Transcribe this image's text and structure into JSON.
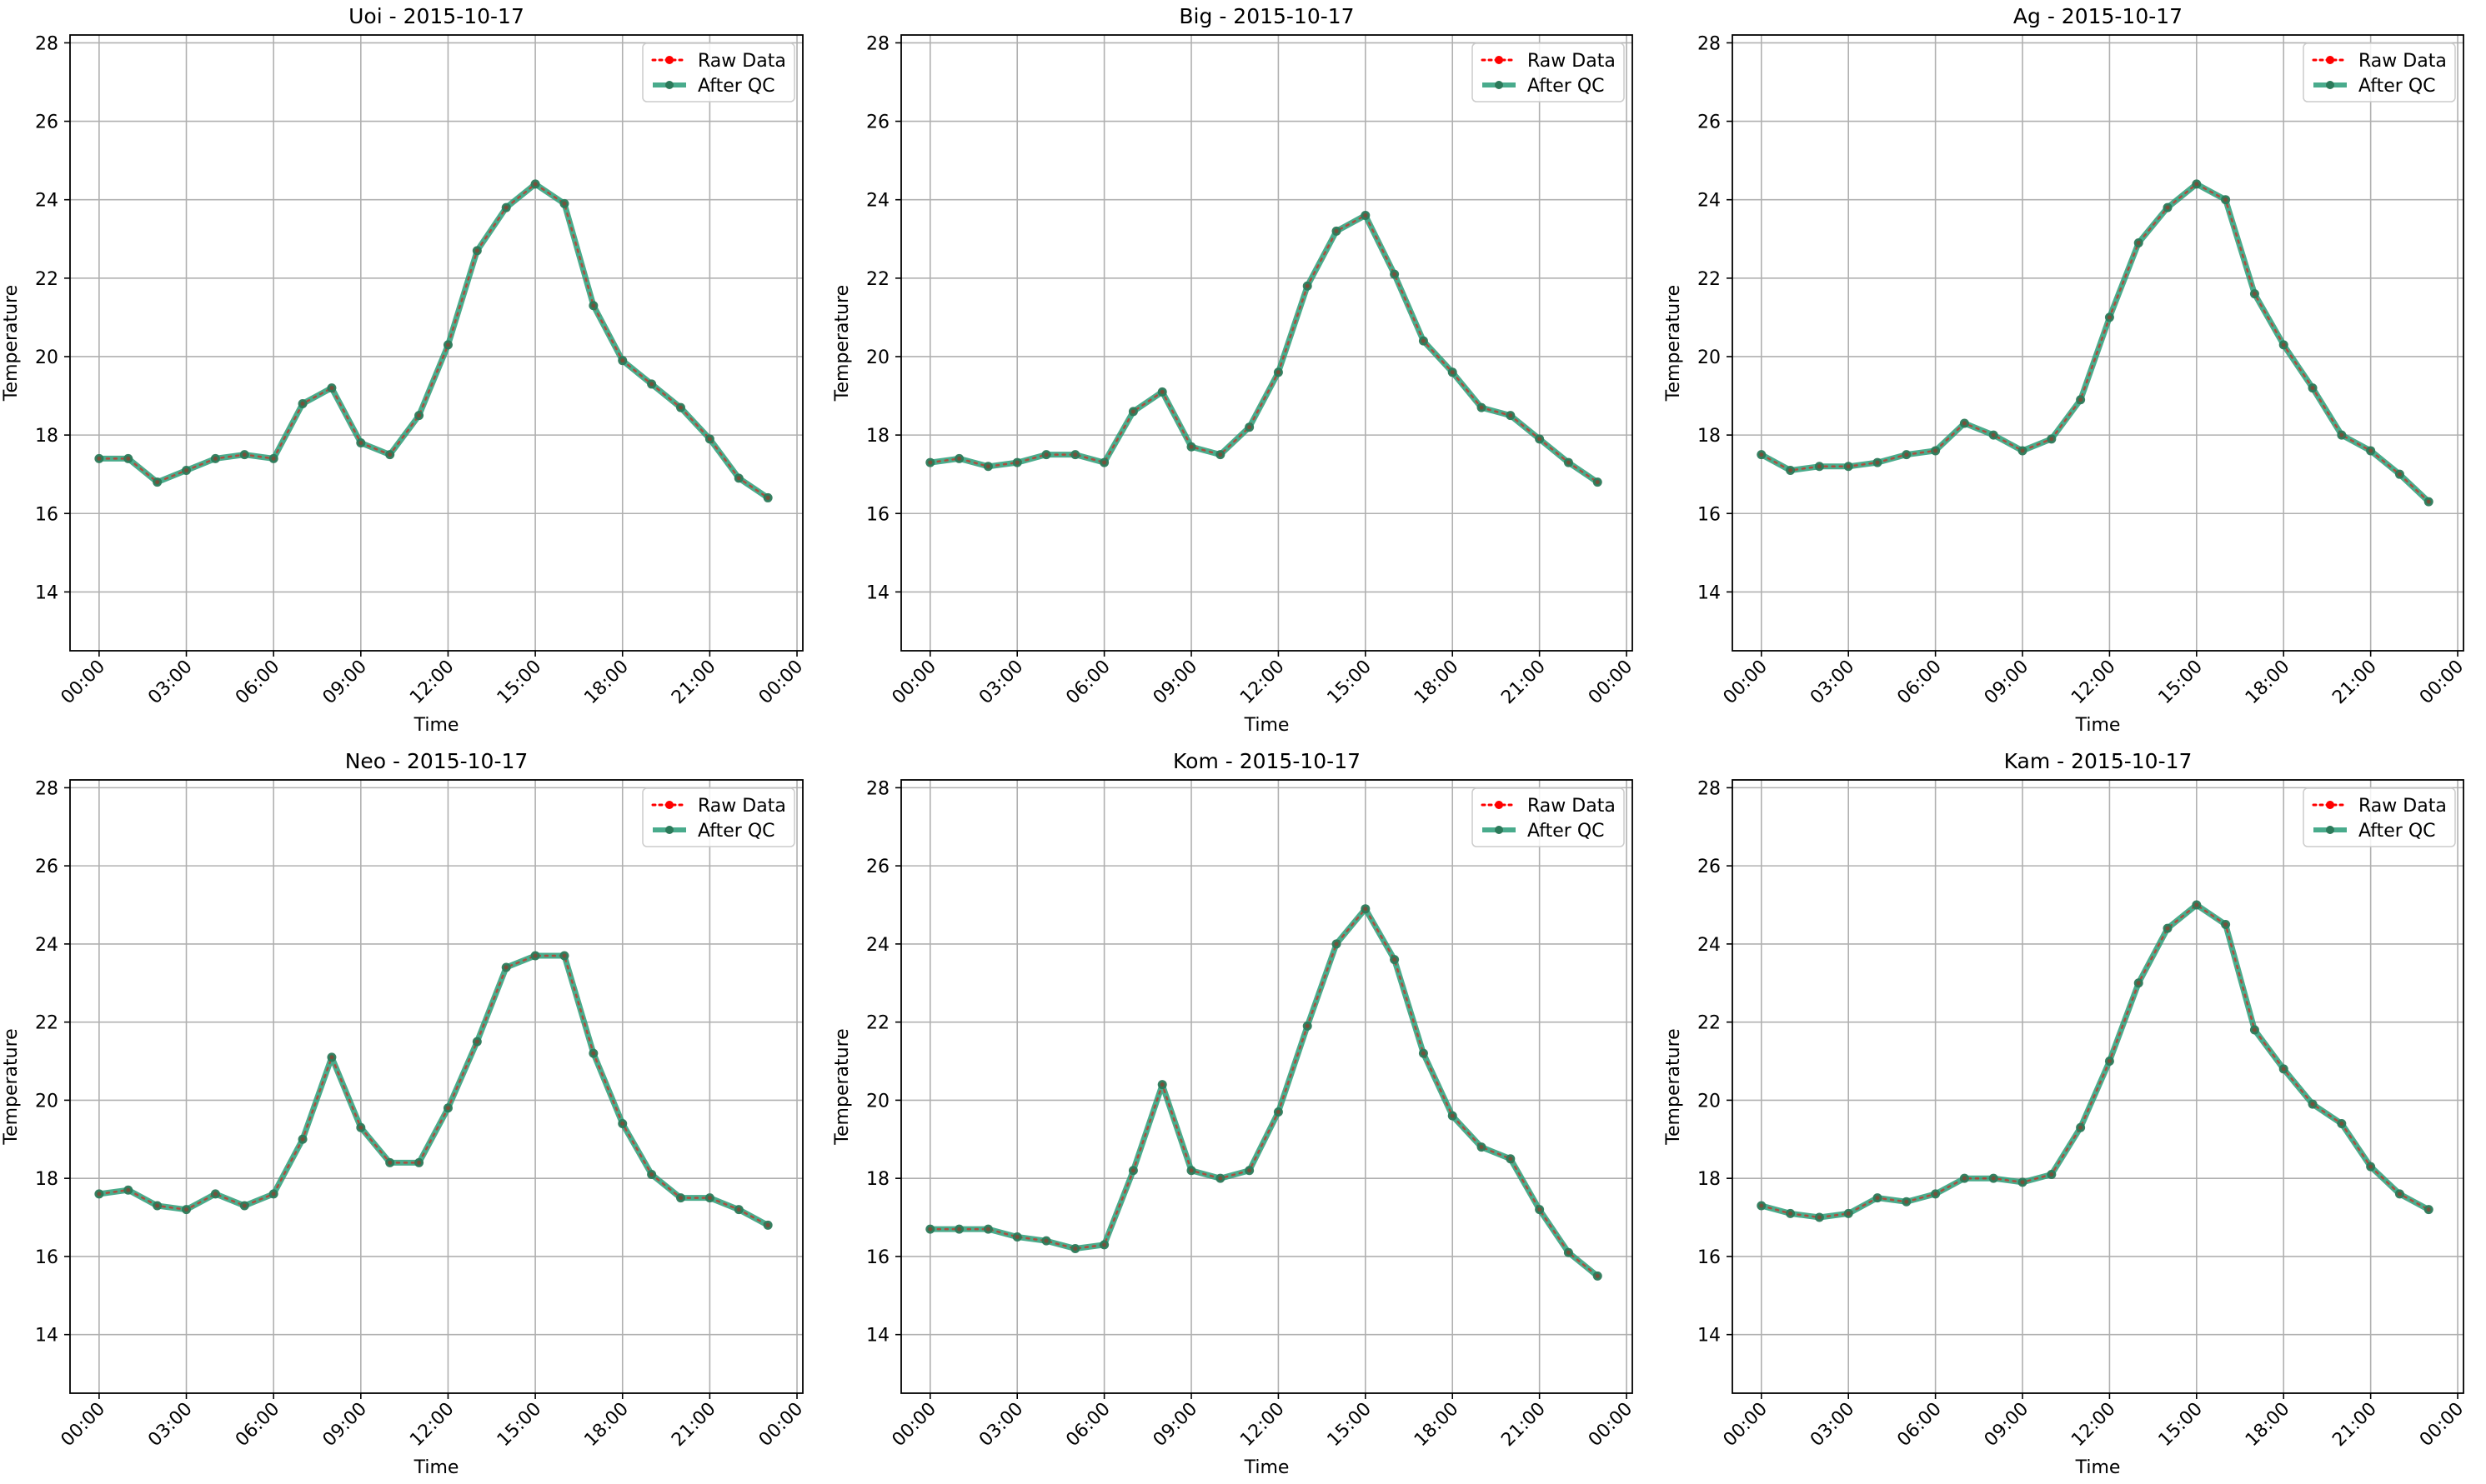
{
  "colors": {
    "raw": "#ff0000",
    "qc": "#2a9d78",
    "qc_marker": "#2c7a5a",
    "grid": "#b0b0b0",
    "axes": "#000000"
  },
  "legend": {
    "raw_label": "Raw Data",
    "qc_label": "After QC",
    "placement": "upper right"
  },
  "chart_data": [
    {
      "type": "line",
      "title": "Uoi - 2015-10-17",
      "xlabel": "Time",
      "ylabel": "Temperature",
      "ylim": [
        12.5,
        28.2
      ],
      "yticks": [
        14,
        16,
        18,
        20,
        22,
        24,
        26,
        28
      ],
      "xlim": [
        -1.0,
        24.2
      ],
      "xticks": [
        "00:00",
        "03:00",
        "06:00",
        "09:00",
        "12:00",
        "15:00",
        "18:00",
        "21:00",
        "00:00"
      ],
      "grid": true,
      "x_hours": [
        0,
        1,
        2,
        3,
        4,
        5,
        6,
        7,
        8,
        9,
        10,
        11,
        12,
        13,
        14,
        15,
        16,
        17,
        18,
        19,
        20,
        21,
        22,
        23
      ],
      "series": [
        {
          "name": "Raw Data",
          "values": [
            17.4,
            17.4,
            16.8,
            17.1,
            17.4,
            17.5,
            17.4,
            18.8,
            19.2,
            17.8,
            17.5,
            18.5,
            20.3,
            22.7,
            23.8,
            24.4,
            23.9,
            21.3,
            19.9,
            19.3,
            18.7,
            17.9,
            16.9,
            16.4
          ]
        },
        {
          "name": "After QC",
          "values": [
            17.4,
            17.4,
            16.8,
            17.1,
            17.4,
            17.5,
            17.4,
            18.8,
            19.2,
            17.8,
            17.5,
            18.5,
            20.3,
            22.7,
            23.8,
            24.4,
            23.9,
            21.3,
            19.9,
            19.3,
            18.7,
            17.9,
            16.9,
            16.4
          ]
        }
      ]
    },
    {
      "type": "line",
      "title": "Big - 2015-10-17",
      "xlabel": "Time",
      "ylabel": "Temperature",
      "ylim": [
        12.5,
        28.2
      ],
      "yticks": [
        14,
        16,
        18,
        20,
        22,
        24,
        26,
        28
      ],
      "xlim": [
        -1.0,
        24.2
      ],
      "xticks": [
        "00:00",
        "03:00",
        "06:00",
        "09:00",
        "12:00",
        "15:00",
        "18:00",
        "21:00",
        "00:00"
      ],
      "grid": true,
      "x_hours": [
        0,
        1,
        2,
        3,
        4,
        5,
        6,
        7,
        8,
        9,
        10,
        11,
        12,
        13,
        14,
        15,
        16,
        17,
        18,
        19,
        20,
        21,
        22,
        23
      ],
      "series": [
        {
          "name": "Raw Data",
          "values": [
            17.3,
            17.4,
            17.2,
            17.3,
            17.5,
            17.5,
            17.3,
            18.6,
            19.1,
            17.7,
            17.5,
            18.2,
            19.6,
            21.8,
            23.2,
            23.6,
            22.1,
            20.4,
            19.6,
            18.7,
            18.5,
            17.9,
            17.3,
            16.8
          ]
        },
        {
          "name": "After QC",
          "values": [
            17.3,
            17.4,
            17.2,
            17.3,
            17.5,
            17.5,
            17.3,
            18.6,
            19.1,
            17.7,
            17.5,
            18.2,
            19.6,
            21.8,
            23.2,
            23.6,
            22.1,
            20.4,
            19.6,
            18.7,
            18.5,
            17.9,
            17.3,
            16.8
          ]
        }
      ]
    },
    {
      "type": "line",
      "title": "Ag - 2015-10-17",
      "xlabel": "Time",
      "ylabel": "Temperature",
      "ylim": [
        12.5,
        28.2
      ],
      "yticks": [
        14,
        16,
        18,
        20,
        22,
        24,
        26,
        28
      ],
      "xlim": [
        -1.0,
        24.2
      ],
      "xticks": [
        "00:00",
        "03:00",
        "06:00",
        "09:00",
        "12:00",
        "15:00",
        "18:00",
        "21:00",
        "00:00"
      ],
      "grid": true,
      "x_hours": [
        0,
        1,
        2,
        3,
        4,
        5,
        6,
        7,
        8,
        9,
        10,
        11,
        12,
        13,
        14,
        15,
        16,
        17,
        18,
        19,
        20,
        21,
        22,
        23
      ],
      "series": [
        {
          "name": "Raw Data",
          "values": [
            17.5,
            17.1,
            17.2,
            17.2,
            17.3,
            17.5,
            17.6,
            18.3,
            18.0,
            17.6,
            17.9,
            18.9,
            21.0,
            22.9,
            23.8,
            24.4,
            24.0,
            21.6,
            20.3,
            19.2,
            18.0,
            17.6,
            17.0,
            16.3
          ]
        },
        {
          "name": "After QC",
          "values": [
            17.5,
            17.1,
            17.2,
            17.2,
            17.3,
            17.5,
            17.6,
            18.3,
            18.0,
            17.6,
            17.9,
            18.9,
            21.0,
            22.9,
            23.8,
            24.4,
            24.0,
            21.6,
            20.3,
            19.2,
            18.0,
            17.6,
            17.0,
            16.3
          ]
        }
      ]
    },
    {
      "type": "line",
      "title": "Neo - 2015-10-17",
      "xlabel": "Time",
      "ylabel": "Temperature",
      "ylim": [
        12.5,
        28.2
      ],
      "yticks": [
        14,
        16,
        18,
        20,
        22,
        24,
        26,
        28
      ],
      "xlim": [
        -1.0,
        24.2
      ],
      "xticks": [
        "00:00",
        "03:00",
        "06:00",
        "09:00",
        "12:00",
        "15:00",
        "18:00",
        "21:00",
        "00:00"
      ],
      "grid": true,
      "x_hours": [
        0,
        1,
        2,
        3,
        4,
        5,
        6,
        7,
        8,
        9,
        10,
        11,
        12,
        13,
        14,
        15,
        16,
        17,
        18,
        19,
        20,
        21,
        22,
        23
      ],
      "series": [
        {
          "name": "Raw Data",
          "values": [
            17.6,
            17.7,
            17.3,
            17.2,
            17.6,
            17.3,
            17.6,
            19.0,
            21.1,
            19.3,
            18.4,
            18.4,
            19.8,
            21.5,
            23.4,
            23.7,
            23.7,
            21.2,
            19.4,
            18.1,
            17.5,
            17.5,
            17.2,
            16.8
          ]
        },
        {
          "name": "After QC",
          "values": [
            17.6,
            17.7,
            17.3,
            17.2,
            17.6,
            17.3,
            17.6,
            19.0,
            21.1,
            19.3,
            18.4,
            18.4,
            19.8,
            21.5,
            23.4,
            23.7,
            23.7,
            21.2,
            19.4,
            18.1,
            17.5,
            17.5,
            17.2,
            16.8
          ]
        }
      ]
    },
    {
      "type": "line",
      "title": "Kom - 2015-10-17",
      "xlabel": "Time",
      "ylabel": "Temperature",
      "ylim": [
        12.5,
        28.2
      ],
      "yticks": [
        14,
        16,
        18,
        20,
        22,
        24,
        26,
        28
      ],
      "xlim": [
        -1.0,
        24.2
      ],
      "xticks": [
        "00:00",
        "03:00",
        "06:00",
        "09:00",
        "12:00",
        "15:00",
        "18:00",
        "21:00",
        "00:00"
      ],
      "grid": true,
      "x_hours": [
        0,
        1,
        2,
        3,
        4,
        5,
        6,
        7,
        8,
        9,
        10,
        11,
        12,
        13,
        14,
        15,
        16,
        17,
        18,
        19,
        20,
        21,
        22,
        23
      ],
      "series": [
        {
          "name": "Raw Data",
          "values": [
            16.7,
            16.7,
            16.7,
            16.5,
            16.4,
            16.2,
            16.3,
            18.2,
            20.4,
            18.2,
            18.0,
            18.2,
            19.7,
            21.9,
            24.0,
            24.9,
            23.6,
            21.2,
            19.6,
            18.8,
            18.5,
            17.2,
            16.1,
            15.5
          ]
        },
        {
          "name": "After QC",
          "values": [
            16.7,
            16.7,
            16.7,
            16.5,
            16.4,
            16.2,
            16.3,
            18.2,
            20.4,
            18.2,
            18.0,
            18.2,
            19.7,
            21.9,
            24.0,
            24.9,
            23.6,
            21.2,
            19.6,
            18.8,
            18.5,
            17.2,
            16.1,
            15.5
          ]
        }
      ]
    },
    {
      "type": "line",
      "title": "Kam - 2015-10-17",
      "xlabel": "Time",
      "ylabel": "Temperature",
      "ylim": [
        12.5,
        28.2
      ],
      "yticks": [
        14,
        16,
        18,
        20,
        22,
        24,
        26,
        28
      ],
      "xlim": [
        -1.0,
        24.2
      ],
      "xticks": [
        "00:00",
        "03:00",
        "06:00",
        "09:00",
        "12:00",
        "15:00",
        "18:00",
        "21:00",
        "00:00"
      ],
      "grid": true,
      "x_hours": [
        0,
        1,
        2,
        3,
        4,
        5,
        6,
        7,
        8,
        9,
        10,
        11,
        12,
        13,
        14,
        15,
        16,
        17,
        18,
        19,
        20,
        21,
        22,
        23
      ],
      "series": [
        {
          "name": "Raw Data",
          "values": [
            17.3,
            17.1,
            17.0,
            17.1,
            17.5,
            17.4,
            17.6,
            18.0,
            18.0,
            17.9,
            18.1,
            19.3,
            21.0,
            23.0,
            24.4,
            25.0,
            24.5,
            21.8,
            20.8,
            19.9,
            19.4,
            18.3,
            17.6,
            17.2
          ]
        },
        {
          "name": "After QC",
          "values": [
            17.3,
            17.1,
            17.0,
            17.1,
            17.5,
            17.4,
            17.6,
            18.0,
            18.0,
            17.9,
            18.1,
            19.3,
            21.0,
            23.0,
            24.4,
            25.0,
            24.5,
            21.8,
            20.8,
            19.9,
            19.4,
            18.3,
            17.6,
            17.2
          ]
        }
      ]
    }
  ]
}
